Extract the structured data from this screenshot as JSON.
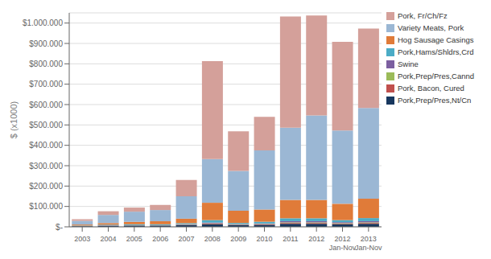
{
  "chart_data": {
    "type": "bar",
    "stacked": true,
    "categories": [
      "2003",
      "2004",
      "2005",
      "2006",
      "2007",
      "2008",
      "2009",
      "2010",
      "2011",
      "2012",
      "2012\nJan-Nov",
      "2013\nJan-Nov"
    ],
    "series": [
      {
        "name": "Pork,Prep/Pres,Nt/Cn",
        "color": "#17375e",
        "values": [
          3000,
          5000,
          6000,
          6000,
          8000,
          12000,
          8000,
          10000,
          15000,
          15000,
          12000,
          15000
        ]
      },
      {
        "name": "Pork, Bacon, Cured",
        "color": "#c0504d",
        "values": [
          500,
          1000,
          1000,
          1000,
          2000,
          3000,
          2000,
          2000,
          4000,
          4000,
          3000,
          4000
        ]
      },
      {
        "name": "Pork,Prep/Pres,Cannd",
        "color": "#9bbb59",
        "values": [
          300,
          500,
          500,
          500,
          1000,
          2000,
          1000,
          2000,
          3000,
          3000,
          3000,
          3000
        ]
      },
      {
        "name": "Swine",
        "color": "#7c5fa0",
        "values": [
          500,
          1000,
          1000,
          1000,
          2000,
          4000,
          2000,
          3000,
          6000,
          6000,
          5000,
          6000
        ]
      },
      {
        "name": "Pork,Hams/Shldrs,Crd",
        "color": "#4bacc6",
        "values": [
          2000,
          3000,
          4000,
          4000,
          5000,
          12000,
          6000,
          8000,
          14000,
          14000,
          10000,
          15000
        ]
      },
      {
        "name": "Hog Sausage Casings",
        "color": "#e07b39",
        "values": [
          5000,
          8000,
          12000,
          15000,
          22000,
          85000,
          60000,
          60000,
          90000,
          90000,
          80000,
          95000
        ]
      },
      {
        "name": "Variety Meats, Pork",
        "color": "#9bb7d4",
        "values": [
          18000,
          40000,
          50000,
          55000,
          110000,
          215000,
          195000,
          290000,
          355000,
          415000,
          360000,
          445000
        ]
      },
      {
        "name": "Pork, Fr/Ch/Fz",
        "color": "#d4a09a",
        "values": [
          8000,
          18000,
          20000,
          25000,
          80000,
          480000,
          195000,
          165000,
          545000,
          490000,
          435000,
          390000
        ]
      }
    ],
    "ylabel": "$ (x1000)",
    "ylim": [
      0,
      1050000
    ],
    "yticks": [
      {
        "value": 0,
        "label": "$-"
      },
      {
        "value": 100000,
        "label": "$100.000"
      },
      {
        "value": 200000,
        "label": "$200.000"
      },
      {
        "value": 300000,
        "label": "$300.000"
      },
      {
        "value": 400000,
        "label": "$400.000"
      },
      {
        "value": 500000,
        "label": "$500.000"
      },
      {
        "value": 600000,
        "label": "$600.000"
      },
      {
        "value": 700000,
        "label": "$700.000"
      },
      {
        "value": 800000,
        "label": "$800.000"
      },
      {
        "value": 900000,
        "label": "$900.000"
      },
      {
        "value": 1000000,
        "label": "$1.000.000"
      }
    ],
    "grid": true,
    "legend": "right"
  }
}
